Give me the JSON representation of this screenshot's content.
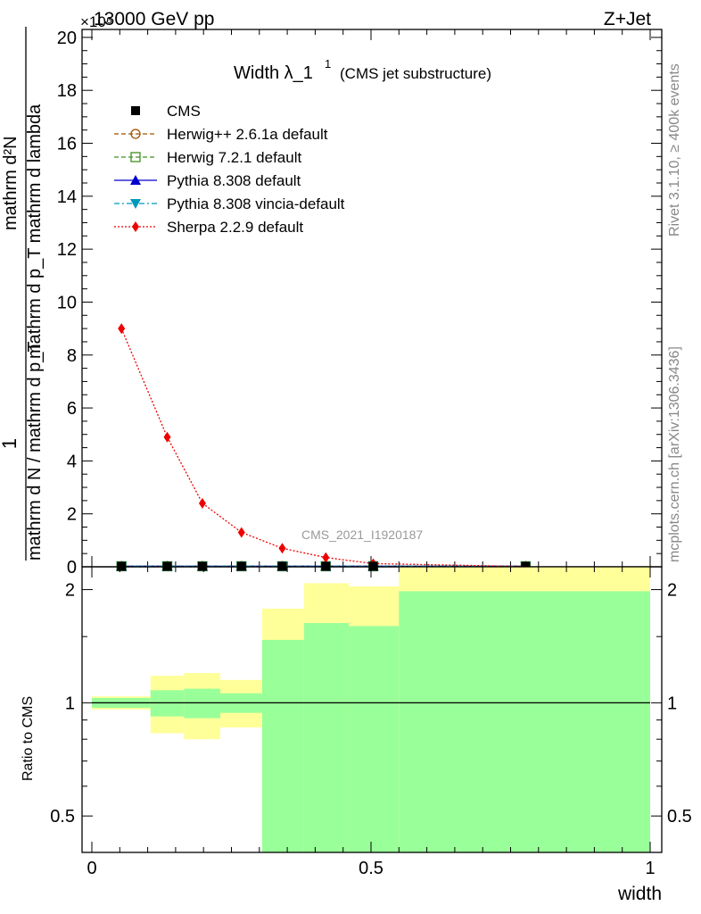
{
  "header": {
    "process_label": "13000 GeV pp",
    "channel_label": "Z+Jet",
    "scale_exponent_label": "×10⁶"
  },
  "side_labels": {
    "rivet": "Rivet 3.1.10, ≥ 400k events",
    "mcplots": "mcplots.cern.ch [arXiv:1306.3436]"
  },
  "watermark": "CMS_2021_I1920187",
  "colors": {
    "band_yellow": "#ffff99",
    "band_green": "#99ff99",
    "cms": "#000000",
    "herwigpp": "#a05000",
    "herwig7": "#409020",
    "pythia": "#0000cc",
    "vincia": "#0099bb",
    "sherpa": "#ee0000"
  },
  "chart_data": [
    {
      "type": "scatter",
      "title": "Width λ_1¹ (CMS jet substructure)",
      "title_main": "Width λ_1",
      "title_sup": "1",
      "title_sub": "(CMS jet substructure)",
      "ylabel_top": "1",
      "ylabel_top_denom": "mathrm d N / mathrm d p_T",
      "ylabel_num": "mathrm d²N",
      "ylabel_den": "mathrm d p_T mathrm d lambda",
      "ylim": [
        0,
        20.3
      ],
      "y_scale_factor": 1000000,
      "y_ticks": [
        0,
        2,
        4,
        6,
        8,
        10,
        12,
        14,
        16,
        18,
        20
      ],
      "legend_position": "top-left",
      "series": [
        {
          "name": "CMS",
          "marker": "square-filled",
          "line": "none",
          "x": [
            0.053,
            0.135,
            0.198,
            0.268,
            0.341,
            0.419,
            0.504,
            0.777
          ],
          "y": [
            0.02,
            0.02,
            0.02,
            0.02,
            0.02,
            0.02,
            0.02,
            0.02
          ]
        },
        {
          "name": "Herwig++ 2.6.1a default",
          "marker": "circle-open",
          "line": "dashed",
          "x": [
            0.053,
            0.135,
            0.198,
            0.268,
            0.341,
            0.419,
            0.504,
            0.777
          ],
          "y": [
            0.02,
            0.02,
            0.02,
            0.02,
            0.02,
            0.02,
            0.02,
            0.02
          ]
        },
        {
          "name": "Herwig 7.2.1 default",
          "marker": "square-open",
          "line": "dashed",
          "x": [
            0.053,
            0.135,
            0.198,
            0.268,
            0.341,
            0.419,
            0.504,
            0.777
          ],
          "y": [
            0.02,
            0.02,
            0.02,
            0.02,
            0.02,
            0.02,
            0.02,
            0.02
          ]
        },
        {
          "name": "Pythia 8.308 default",
          "marker": "triangle-up",
          "line": "solid",
          "x": [
            0.053,
            0.135,
            0.198,
            0.268,
            0.341,
            0.419,
            0.504,
            0.777
          ],
          "y": [
            0.02,
            0.02,
            0.02,
            0.02,
            0.02,
            0.02,
            0.02,
            0.02
          ]
        },
        {
          "name": "Pythia 8.308 vincia-default",
          "marker": "triangle-down",
          "line": "dashdot",
          "x": [
            0.053,
            0.135,
            0.198,
            0.268,
            0.341,
            0.419,
            0.504,
            0.777
          ],
          "y": [
            0.02,
            0.02,
            0.02,
            0.02,
            0.02,
            0.02,
            0.02,
            0.02
          ]
        },
        {
          "name": "Sherpa 2.2.9 default",
          "marker": "diamond",
          "line": "dotted",
          "x": [
            0.053,
            0.135,
            0.198,
            0.268,
            0.341,
            0.419,
            0.504,
            0.777
          ],
          "y": [
            9.0,
            4.9,
            2.4,
            1.3,
            0.7,
            0.35,
            0.12,
            0.01
          ]
        }
      ]
    },
    {
      "type": "area",
      "ylabel": "Ratio to CMS",
      "xlabel": "width",
      "xlim": [
        0,
        1
      ],
      "x_ticks": [
        0,
        0.5,
        1
      ],
      "x_tick_labels": [
        "0",
        "0.5",
        "1"
      ],
      "y_scale": "log",
      "ylim": [
        0.4,
        2.3
      ],
      "y_ticks": [
        0.5,
        1,
        2
      ],
      "y_tick_labels": [
        "0.5",
        "1",
        "2"
      ],
      "reference_line": 1,
      "bands": [
        {
          "xlo": 0.0,
          "xhi": 0.105,
          "green": [
            0.97,
            1.03
          ],
          "yellow": [
            0.96,
            1.04
          ]
        },
        {
          "xlo": 0.105,
          "xhi": 0.165,
          "green": [
            0.92,
            1.08
          ],
          "yellow": [
            0.83,
            1.18
          ]
        },
        {
          "xlo": 0.165,
          "xhi": 0.23,
          "green": [
            0.91,
            1.09
          ],
          "yellow": [
            0.8,
            1.2
          ]
        },
        {
          "xlo": 0.23,
          "xhi": 0.305,
          "green": [
            0.94,
            1.06
          ],
          "yellow": [
            0.86,
            1.15
          ]
        },
        {
          "xlo": 0.305,
          "xhi": 0.38,
          "green": [
            0.4,
            1.47
          ],
          "yellow": [
            0.4,
            1.78
          ]
        },
        {
          "xlo": 0.38,
          "xhi": 0.46,
          "green": [
            0.4,
            1.63
          ],
          "yellow": [
            0.4,
            2.08
          ]
        },
        {
          "xlo": 0.46,
          "xhi": 0.55,
          "green": [
            0.4,
            1.6
          ],
          "yellow": [
            0.4,
            2.04
          ]
        },
        {
          "xlo": 0.55,
          "xhi": 1.0,
          "green": [
            0.4,
            1.98
          ],
          "yellow": [
            0.4,
            2.3
          ]
        }
      ]
    }
  ]
}
